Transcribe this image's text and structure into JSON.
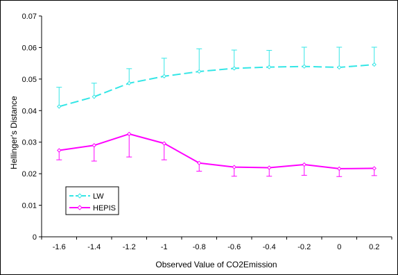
{
  "chart_data": {
    "type": "line",
    "title": "",
    "xlabel": "Observed Value of CO2Emission",
    "ylabel": "Hellinger's Distance",
    "categories": [
      "-1.6",
      "-1.4",
      "-1.2",
      "-1",
      "-0.8",
      "-0.6",
      "-0.4",
      "-0.2",
      "0",
      "0.2"
    ],
    "ylim": [
      0,
      0.07
    ],
    "yticks": [
      "0",
      "0.01",
      "0.02",
      "0.03",
      "0.04",
      "0.05",
      "0.06",
      "0.07"
    ],
    "grid": false,
    "legend_position": "bottom-left",
    "series": [
      {
        "name": "LW",
        "color": "#33e6e6",
        "dash": true,
        "marker": "diamond-open",
        "error_direction": "up",
        "values": [
          0.0413,
          0.0444,
          0.0487,
          0.0509,
          0.0524,
          0.0534,
          0.0538,
          0.054,
          0.0537,
          0.0546
        ],
        "error": [
          0.0061,
          0.0043,
          0.0046,
          0.0057,
          0.0072,
          0.0058,
          0.0053,
          0.0061,
          0.0064,
          0.0055
        ]
      },
      {
        "name": "HEPIS",
        "color": "#ff00ff",
        "dash": false,
        "marker": "diamond-open",
        "error_direction": "down",
        "values": [
          0.0274,
          0.029,
          0.0326,
          0.0296,
          0.0234,
          0.0221,
          0.0219,
          0.0229,
          0.0216,
          0.0217
        ],
        "error": [
          0.003,
          0.005,
          0.0073,
          0.0052,
          0.0026,
          0.0029,
          0.0027,
          0.0034,
          0.0025,
          0.0023
        ]
      }
    ]
  }
}
